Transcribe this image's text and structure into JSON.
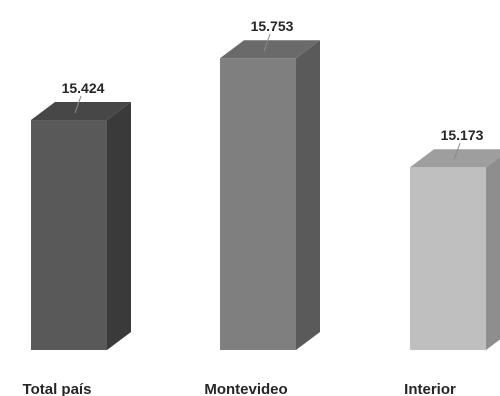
{
  "chart_data": {
    "type": "bar",
    "style": "3d-column",
    "categories": [
      "Total país",
      "Montevideo",
      "Interior"
    ],
    "values": [
      15.424,
      15.753,
      15.173
    ],
    "value_labels": [
      "15.424",
      "15.753",
      "15.173"
    ],
    "title": "",
    "xlabel": "",
    "ylabel": "",
    "ylim": [
      14.2,
      15.85
    ],
    "grid": false,
    "legend": "none",
    "colors": {
      "front": [
        "#595959",
        "#7f7f7f",
        "#bfbfbf"
      ],
      "side": [
        "#3a3a3a",
        "#5a5a5a",
        "#8e8e8e"
      ],
      "top": [
        "#474747",
        "#6a6a6a",
        "#9e9e9e"
      ]
    }
  }
}
